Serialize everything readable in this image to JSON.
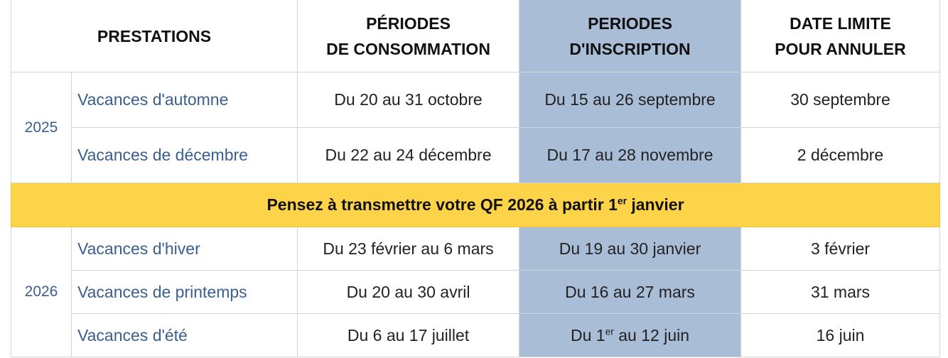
{
  "headers": {
    "prestations": "PRESTATIONS",
    "conso_1": "PÉRIODES",
    "conso_2": "DE CONSOMMATION",
    "inscr_1": "PERIODES",
    "inscr_2": "D'INSCRIPTION",
    "annul_1": "DATE LIMITE",
    "annul_2": "POUR ANNULER"
  },
  "colors": {
    "highlight_column": "#a9bdd6",
    "banner": "#fdd349",
    "label_text": "#3a5f8f"
  },
  "groups": [
    {
      "year": "2025",
      "rows": [
        {
          "label": "Vacances d'automne",
          "conso": "Du 20 au 31 octobre",
          "inscr": "Du 15 au 26 septembre",
          "annul": "30 septembre"
        },
        {
          "label": "Vacances de décembre",
          "conso": "Du 22 au 24 décembre",
          "inscr": "Du 17 au 28 novembre",
          "annul": "2 décembre"
        }
      ]
    },
    {
      "year": "2026",
      "rows": [
        {
          "label": "Vacances d'hiver",
          "conso": "Du 23 février au 6 mars",
          "inscr": "Du 19 au 30 janvier",
          "annul": "3 février"
        },
        {
          "label": "Vacances de printemps",
          "conso": "Du 20 au 30 avril",
          "inscr": "Du 16 au 27 mars",
          "annul": "31 mars"
        },
        {
          "label": "Vacances d'été",
          "conso": "Du 6 au 17 juillet",
          "inscr_pre": "Du 1",
          "inscr_sup": "er",
          "inscr_post": " au 12 juin",
          "annul": "16 juin"
        }
      ]
    }
  ],
  "banner": {
    "pre": "Pensez à transmettre votre QF 2026 à partir 1",
    "sup": "er",
    "post": " janvier"
  }
}
